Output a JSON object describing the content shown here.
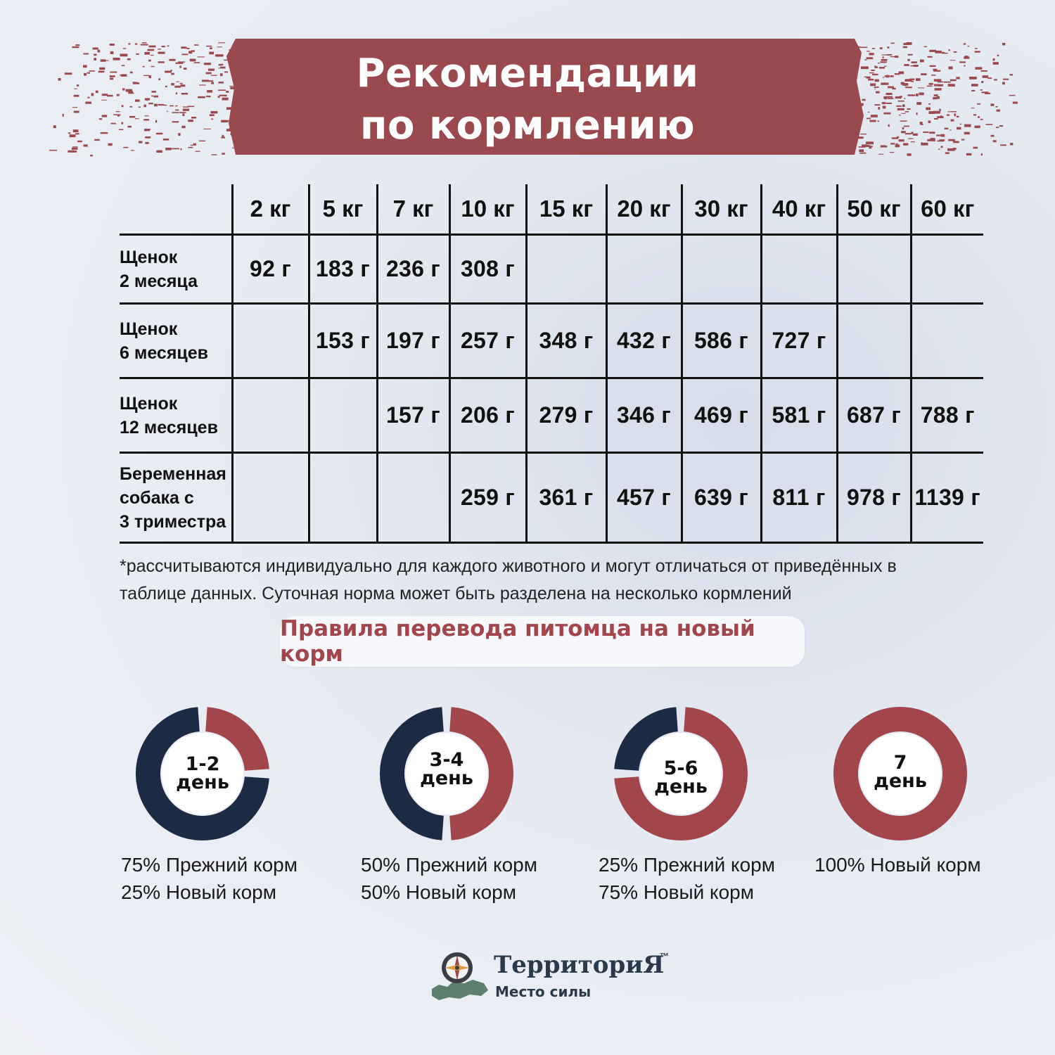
{
  "banner": {
    "title_line1": "Рекомендации",
    "title_line2": "по кормлению",
    "color": "#9a4a4f"
  },
  "table": {
    "weights": [
      "2 кг",
      "5 кг",
      "7 кг",
      "10 кг",
      "15 кг",
      "20 кг",
      "30 кг",
      "40 кг",
      "50 кг",
      "60 кг"
    ],
    "rows": [
      {
        "label_lines": [
          "Щенок",
          "2 месяца"
        ],
        "values": [
          "92 г",
          "183 г",
          "236 г",
          "308 г",
          "",
          "",
          "",
          "",
          "",
          ""
        ]
      },
      {
        "label_lines": [
          "Щенок",
          "6 месяцев"
        ],
        "values": [
          "",
          "153 г",
          "197 г",
          "257 г",
          "348 г",
          "432 г",
          "586 г",
          "727 г",
          "",
          ""
        ]
      },
      {
        "label_lines": [
          "Щенок",
          "12 месяцев"
        ],
        "values": [
          "",
          "",
          "157 г",
          "206 г",
          "279 г",
          "346 г",
          "469 г",
          "581 г",
          "687 г",
          "788 г"
        ]
      },
      {
        "label_lines": [
          "Беременная",
          "собака с",
          "3 триместра"
        ],
        "values": [
          "",
          "",
          "",
          "259 г",
          "361 г",
          "457 г",
          "639 г",
          "811 г",
          "978 г",
          "1139 г"
        ]
      }
    ]
  },
  "footnote": {
    "line1": "*рассчитываются индивидуально для каждого животного и могут отличаться от приведённых в",
    "line2": "таблице данных. Суточная норма может быть разделена на несколько кормлений"
  },
  "rules": {
    "title": "Правила перевода питомца на новый корм",
    "old_color": "#1c2a44",
    "new_color": "#a3464c",
    "stages": [
      {
        "day_num": "1-2",
        "day_word": "день",
        "old_pct": 75,
        "new_pct": 25,
        "caption_line1": "75% Прежний корм",
        "caption_line2": "25% Новый корм"
      },
      {
        "day_num": "3-4",
        "day_word": "день",
        "old_pct": 50,
        "new_pct": 50,
        "caption_line1": "50% Прежний корм",
        "caption_line2": "50% Новый корм"
      },
      {
        "day_num": "5-6",
        "day_word": "день",
        "old_pct": 25,
        "new_pct": 75,
        "caption_line1": "25% Прежний корм",
        "caption_line2": "75% Новый корм"
      },
      {
        "day_num": "7",
        "day_word": "день",
        "old_pct": 0,
        "new_pct": 100,
        "caption_line1": "100% Новый корм",
        "caption_line2": ""
      }
    ]
  },
  "logo": {
    "brand": "ТерриториЯ",
    "tm": "™",
    "tagline": "Место силы"
  }
}
